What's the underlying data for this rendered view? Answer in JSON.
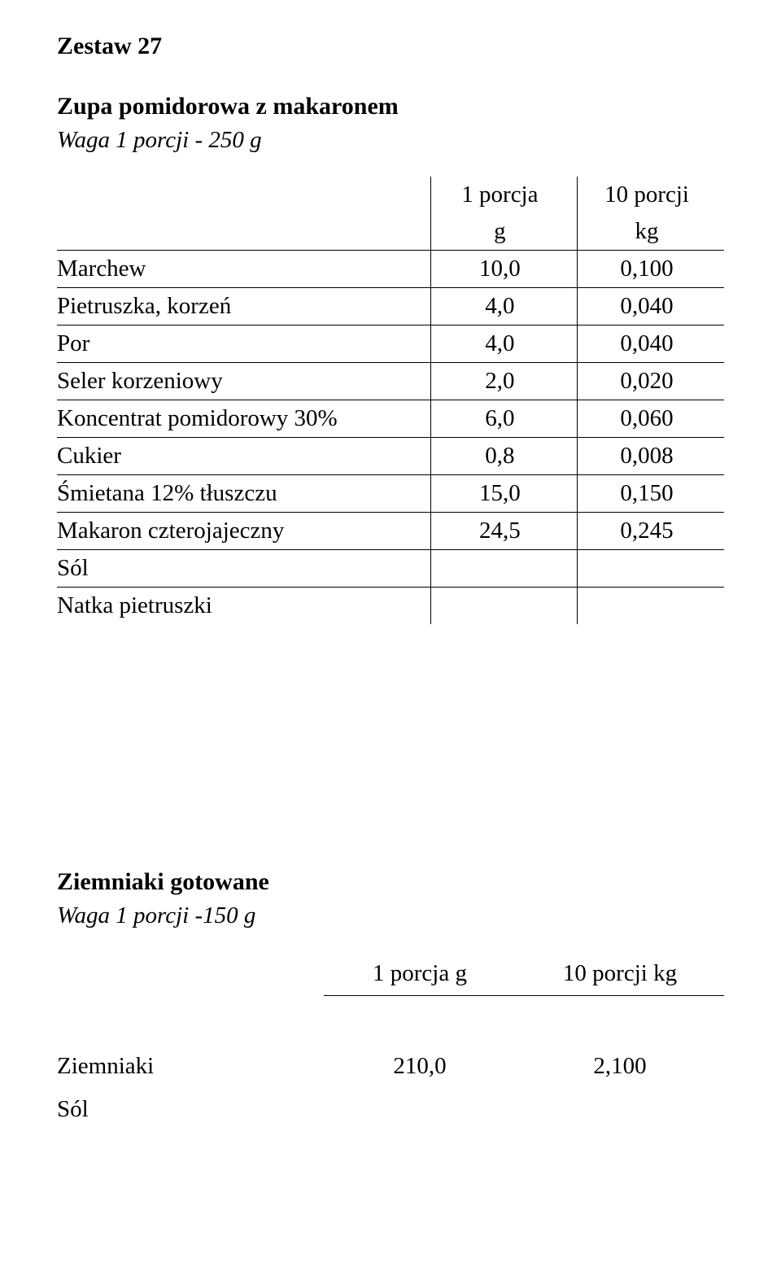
{
  "colors": {
    "text": "#000000",
    "background": "#ffffff",
    "rule": "#000000"
  },
  "typography": {
    "family": "Times New Roman, serif",
    "title_size_pt": 30,
    "body_size_pt": 29
  },
  "set_title": "Zestaw 27",
  "dish1": {
    "title": "Zupa pomidorowa z makaronem",
    "portion_note": "Waga 1 porcji - 250 g",
    "header": {
      "col1_line1": "1 porcja",
      "col1_line2": "g",
      "col2_line1": "10 porcji",
      "col2_line2": "kg"
    },
    "rows": [
      {
        "label": "Marchew",
        "v1": "10,0",
        "v2": "0,100"
      },
      {
        "label": "Pietruszka, korzeń",
        "v1": "4,0",
        "v2": "0,040"
      },
      {
        "label": "Por",
        "v1": "4,0",
        "v2": "0,040"
      },
      {
        "label": "Seler korzeniowy",
        "v1": "2,0",
        "v2": "0,020"
      },
      {
        "label": "Koncentrat pomidorowy 30%",
        "v1": "6,0",
        "v2": "0,060"
      },
      {
        "label": "Cukier",
        "v1": "0,8",
        "v2": "0,008"
      },
      {
        "label": "Śmietana 12% tłuszczu",
        "v1": "15,0",
        "v2": "0,150"
      },
      {
        "label": "Makaron czterojajeczny",
        "v1": "24,5",
        "v2": "0,245"
      },
      {
        "label": "Sól",
        "v1": "",
        "v2": ""
      },
      {
        "label": "Natka pietruszki",
        "v1": "",
        "v2": ""
      }
    ]
  },
  "dish2": {
    "title": "Ziemniaki gotowane",
    "portion_note": "Waga 1 porcji -150 g",
    "header": {
      "col1": "1 porcja g",
      "col2": "10 porcji kg"
    },
    "rows": [
      {
        "label": "Ziemniaki",
        "v1": "210,0",
        "v2": "2,100"
      },
      {
        "label": "Sól",
        "v1": "",
        "v2": ""
      }
    ]
  }
}
